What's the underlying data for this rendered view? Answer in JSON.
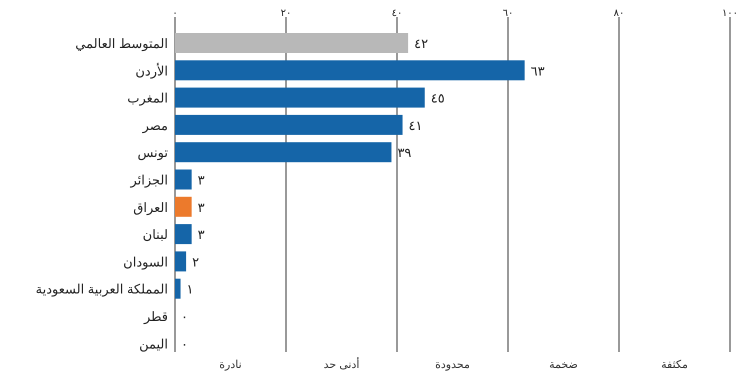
{
  "chart_data": {
    "type": "bar",
    "orientation": "horizontal",
    "categories": [
      "المتوسط العالمي",
      "الأردن",
      "المغرب",
      "مصر",
      "تونس",
      "الجزائر",
      "العراق",
      "لبنان",
      "السودان",
      "المملكة العربية السعودية",
      "قطر",
      "اليمن"
    ],
    "values": [
      42,
      63,
      45,
      41,
      39,
      3,
      3,
      3,
      2,
      1,
      0,
      0
    ],
    "value_labels": [
      "٤٢",
      "٦٣",
      "٤٥",
      "٤١",
      "٣٩",
      "٣",
      "٣",
      "٣",
      "٢",
      "١",
      "٠",
      "٠"
    ],
    "xlim": [
      0,
      100
    ],
    "x_ticks": [
      0,
      20,
      40,
      60,
      80,
      100
    ],
    "x_tick_labels": [
      "٠",
      "٢٠",
      "٤٠",
      "٦٠",
      "٨٠",
      "١٠٠"
    ],
    "x_axis_position": "top",
    "bands": [
      "نادرة",
      "أدنى حد",
      "محدودة",
      "ضخمة",
      "مكثفة"
    ],
    "grid": true,
    "colors": {
      "default": "#1565a8",
      "world_average": "#b8b8b8",
      "highlight": "#ec7a2c",
      "gridline": "#333333"
    },
    "bar_colors": [
      "#b8b8b8",
      "#1565a8",
      "#1565a8",
      "#1565a8",
      "#1565a8",
      "#1565a8",
      "#ec7a2c",
      "#1565a8",
      "#1565a8",
      "#1565a8",
      "#1565a8",
      "#1565a8"
    ],
    "title": "",
    "xlabel": "",
    "ylabel": ""
  }
}
